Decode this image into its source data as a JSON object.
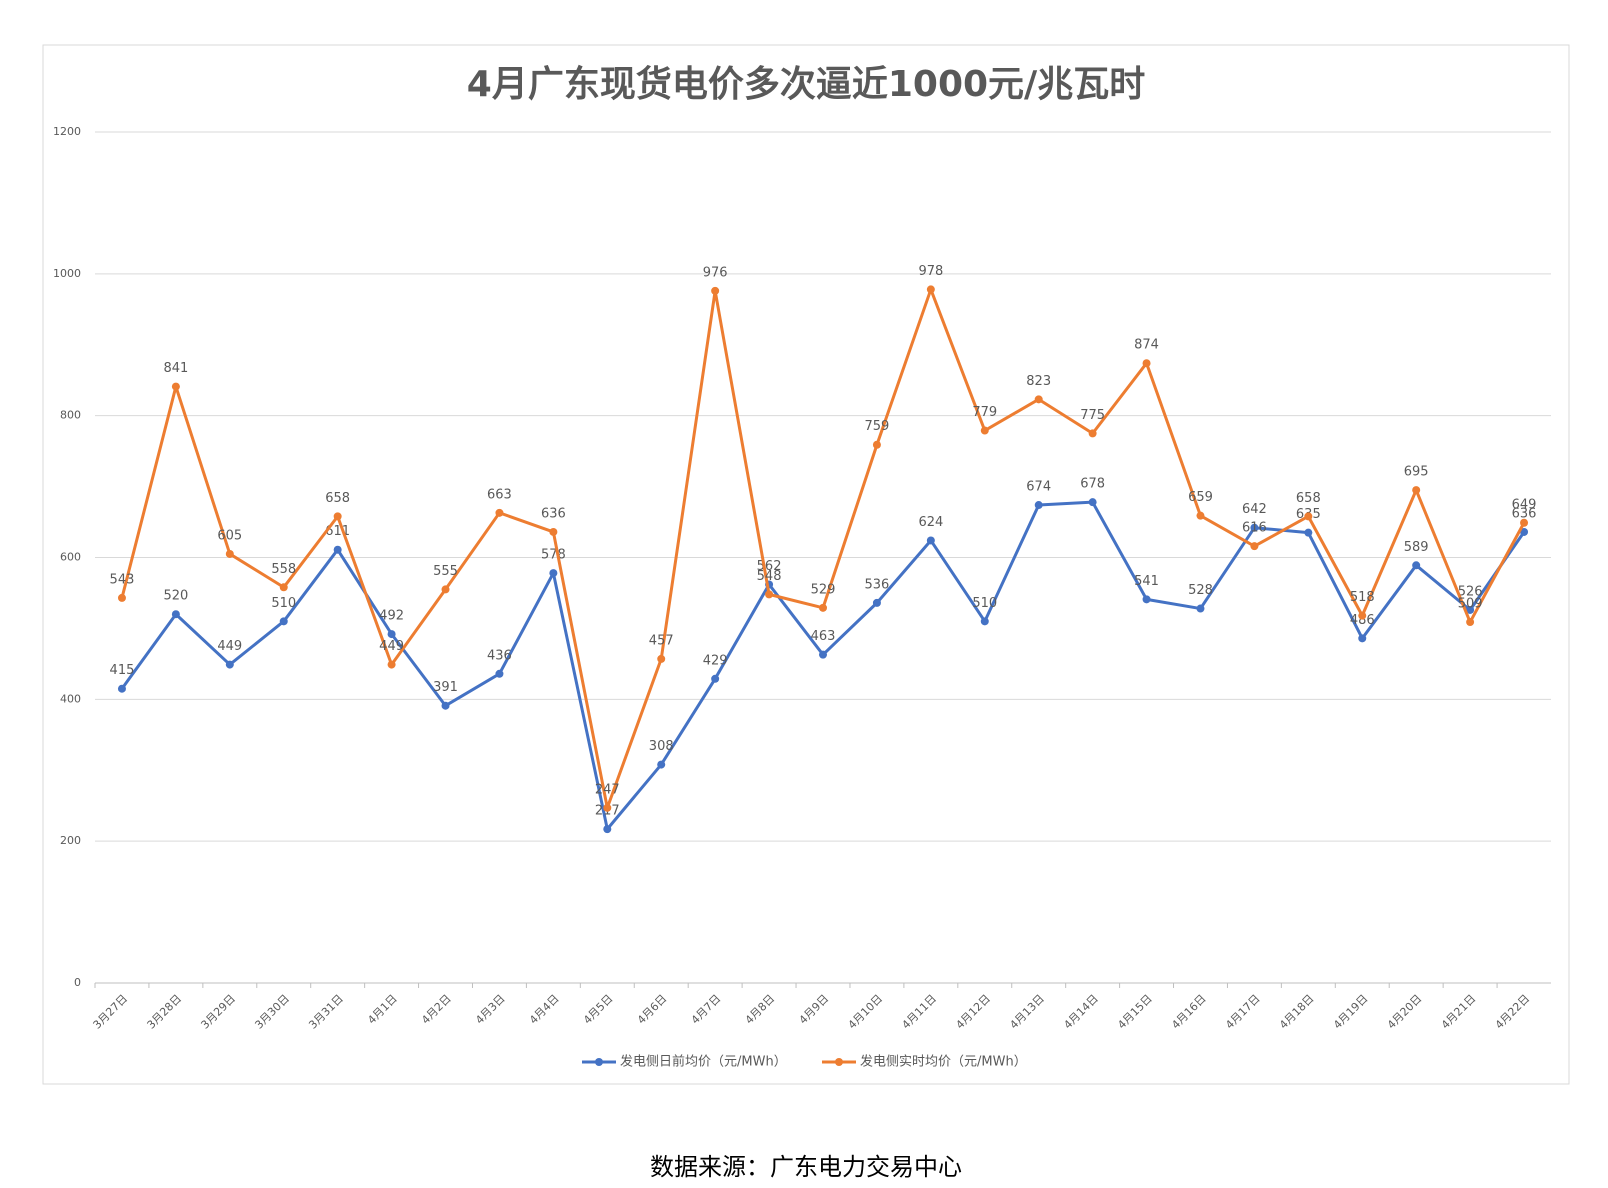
{
  "chart_data": {
    "type": "line",
    "title": "4月广东现货电价多次逼近1000元/兆瓦时",
    "categories": [
      "3月27日",
      "3月28日",
      "3月29日",
      "3月30日",
      "3月31日",
      "4月1日",
      "4月2日",
      "4月3日",
      "4月4日",
      "4月5日",
      "4月6日",
      "4月7日",
      "4月8日",
      "4月9日",
      "4月10日",
      "4月11日",
      "4月12日",
      "4月13日",
      "4月14日",
      "4月15日",
      "4月16日",
      "4月17日",
      "4月18日",
      "4月19日",
      "4月20日",
      "4月21日",
      "4月22日"
    ],
    "series": [
      {
        "name": "发电侧日前均价（元/MWh）",
        "color": "#4472c4",
        "values": [
          415,
          520,
          449,
          510,
          611,
          492,
          391,
          436,
          578,
          217,
          308,
          429,
          562,
          463,
          536,
          624,
          510,
          674,
          678,
          541,
          528,
          642,
          635,
          486,
          589,
          526,
          636
        ]
      },
      {
        "name": "发电侧实时均价（元/MWh）",
        "color": "#ed7d31",
        "values": [
          543,
          841,
          605,
          558,
          658,
          449,
          555,
          663,
          636,
          247,
          457,
          976,
          548,
          529,
          759,
          978,
          779,
          823,
          775,
          874,
          659,
          616,
          658,
          518,
          695,
          509,
          649
        ]
      }
    ],
    "ylim": [
      0,
      1200
    ],
    "yticks": [
      0,
      200,
      400,
      600,
      800,
      1000,
      1200
    ],
    "grid": true,
    "legend": "bottom",
    "source": "数据来源：广东电力交易中心"
  }
}
